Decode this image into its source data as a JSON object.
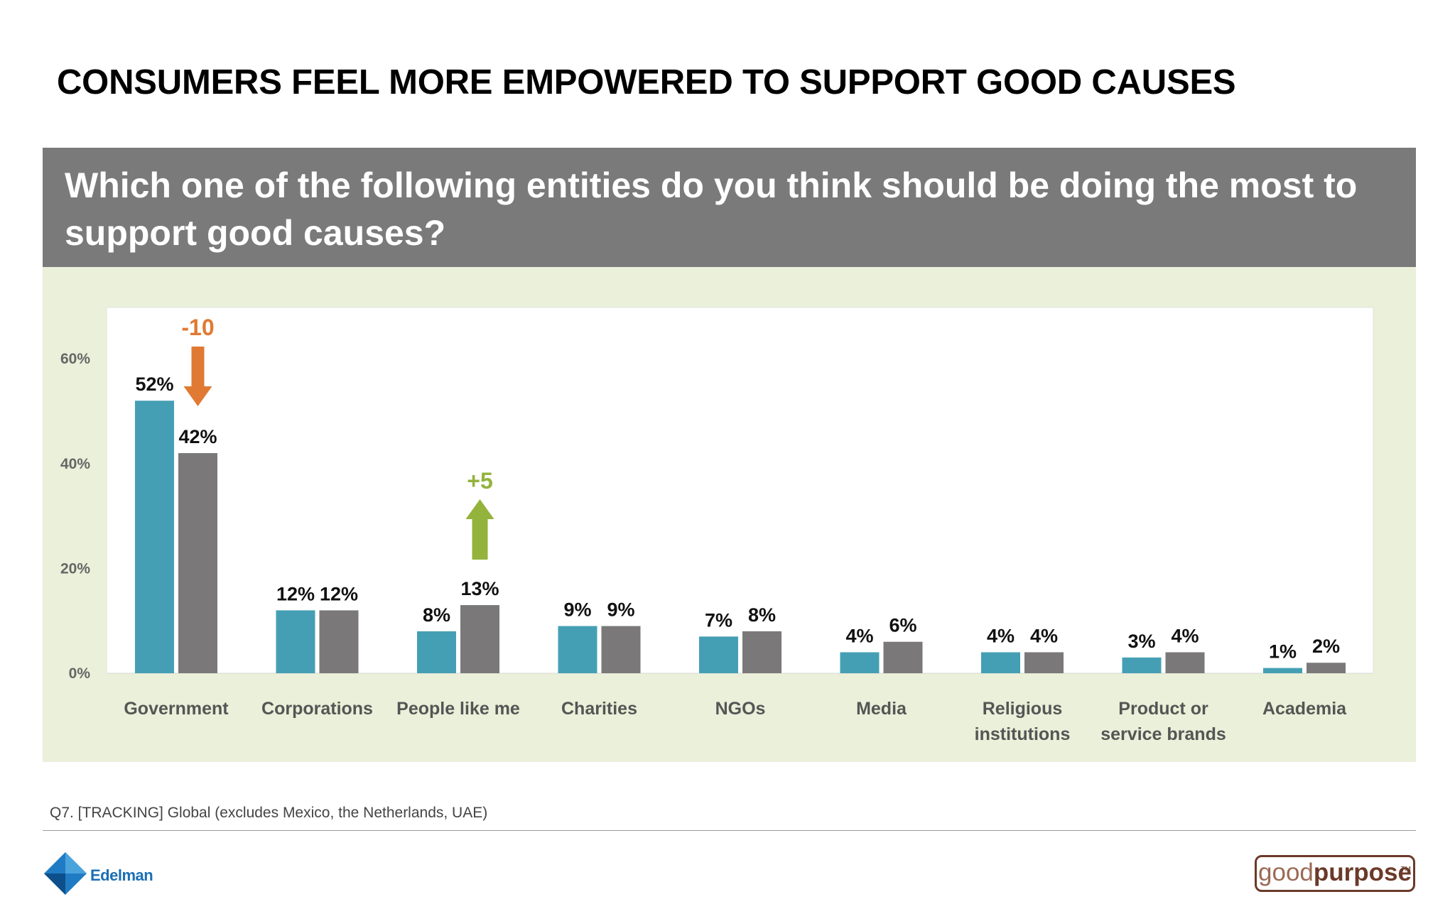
{
  "slide": {
    "title": "CONSUMERS FEEL MORE EMPOWERED TO SUPPORT GOOD CAUSES",
    "question": "Which one of the following entities do you think should be doing the most to support good causes?",
    "source": "Q7. [TRACKING] Global (excludes Mexico, the Netherlands, UAE)",
    "logo_left": "Edelman",
    "logo_right_part1": "good",
    "logo_right_part2": "purpose",
    "logo_right_tm": "TM"
  },
  "chart_data": {
    "type": "bar",
    "categories": [
      [
        "Government"
      ],
      [
        "Corporations"
      ],
      [
        "People like me"
      ],
      [
        "Charities"
      ],
      [
        "NGOs"
      ],
      [
        "Media"
      ],
      [
        "Religious",
        "institutions"
      ],
      [
        "Product or",
        "service brands"
      ],
      [
        "Academia"
      ]
    ],
    "series": [
      {
        "values": [
          52,
          12,
          8,
          9,
          7,
          4,
          4,
          3,
          1
        ],
        "labels": [
          "52%",
          "12%",
          "8%",
          "9%",
          "7%",
          "4%",
          "4%",
          "3%",
          "1%"
        ],
        "color": "#459fb4"
      },
      {
        "values": [
          42,
          12,
          13,
          9,
          8,
          6,
          4,
          4,
          2
        ],
        "labels": [
          "42%",
          "12%",
          "13%",
          "9%",
          "8%",
          "6%",
          "4%",
          "4%",
          "2%"
        ],
        "color": "#7a7879"
      }
    ],
    "y_ticks": [
      {
        "value": 0,
        "label": "0%"
      },
      {
        "value": 20,
        "label": "20%"
      },
      {
        "value": 40,
        "label": "40%"
      },
      {
        "value": 60,
        "label": "60%"
      }
    ],
    "ylim": [
      0,
      70
    ],
    "annotations": [
      {
        "category_index": 0,
        "text": "-10",
        "direction": "down",
        "color": "#e07a33"
      },
      {
        "category_index": 2,
        "text": "+5",
        "direction": "up",
        "color": "#93b33c"
      }
    ],
    "grid": false
  }
}
